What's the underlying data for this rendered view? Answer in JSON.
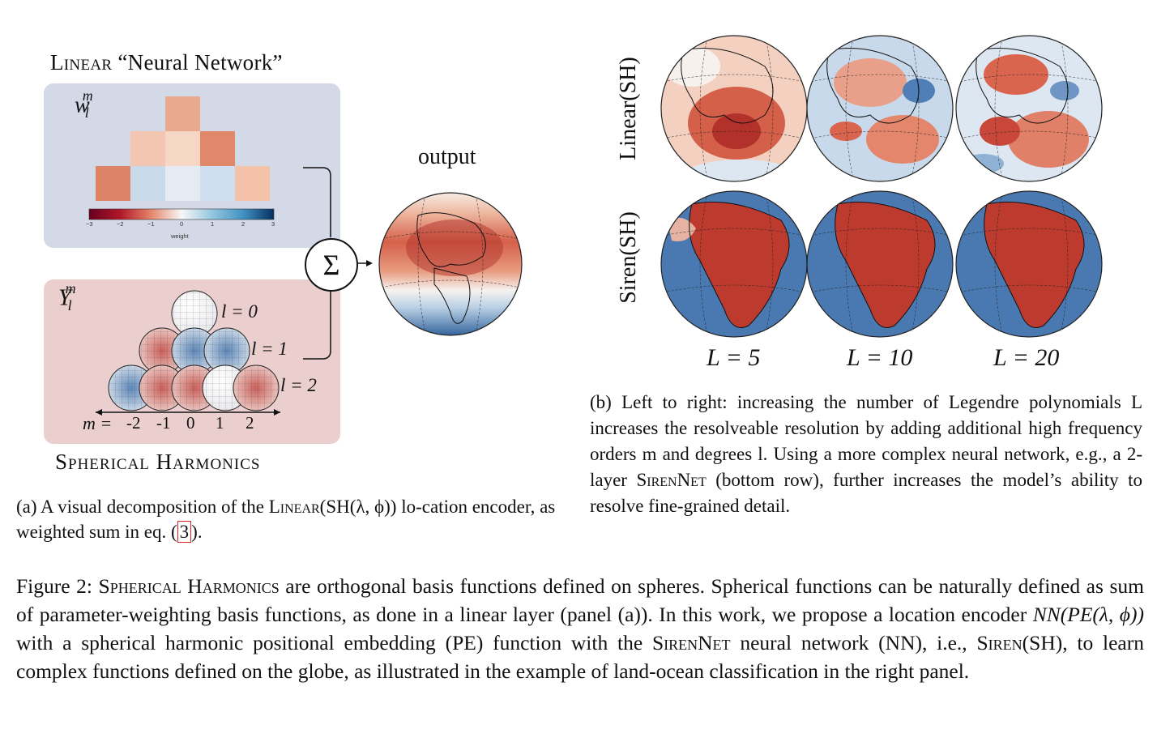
{
  "panel_a": {
    "title_prefix": "Linear",
    "title_suffix": " “Neural Network”",
    "weights_label_base": "w",
    "weights_label_sub": "l",
    "weights_label_sup": "m",
    "sh_label_base": "Y",
    "sh_label_sub": "l",
    "sh_label_sup": "m",
    "colorbar_ticks": [
      "−3",
      "−2",
      "−1",
      "0",
      "1",
      "2",
      "3"
    ],
    "colorbar_title": "weight",
    "degree_labels": [
      "l = 0",
      "l = 1",
      "l = 2"
    ],
    "m_axis_label": "m =",
    "m_ticks": [
      "-2",
      "-1",
      "0",
      "1",
      "2"
    ],
    "sum_symbol": "Σ",
    "output_label": "output",
    "sh_title": "Spherical Harmonics",
    "caption": {
      "part1": "(a) A visual decomposition of the ",
      "linear": "Linear",
      "part2": "(SH(λ, ϕ)) lo-cation encoder, as weighted sum in eq. (",
      "ref": "3",
      "part3": ")."
    }
  },
  "panel_b": {
    "row_labels": [
      "Linear(SH)",
      "Siren(SH)"
    ],
    "column_labels": [
      "L = 5",
      "L = 10",
      "L = 20"
    ],
    "caption": {
      "part1": "(b) Left to right: increasing the number of Legendre polynomials L increases the resolveable resolution by adding additional high frequency orders m and degrees l. Using a more complex neural network, e.g., a 2-layer ",
      "sirennet": "SirenNet",
      "part2": " (bottom row), further increases the model’s ability to resolve fine-grained detail."
    }
  },
  "figure_caption": {
    "label": "Figure 2: ",
    "sh": "Spherical Harmonics",
    "part1": " are orthogonal basis functions defined on spheres. Spherical functions can be naturally defined as sum of parameter-weighting basis functions, as done in a linear layer (panel (a)). In this work, we propose a location encoder ",
    "math": "NN(PE(λ, ϕ))",
    "part2": " with a spherical harmonic positional embedding (PE) function with the ",
    "sirennet": "SirenNet",
    "part3": " neural network (NN), i.e., ",
    "siren": "Siren",
    "part4": "(SH), to learn complex functions defined on the globe, as illustrated in the example of land-ocean classification in the right panel."
  },
  "colors": {
    "weights_box": "#d3d9e6",
    "harmonics_box": "#ebcfcf",
    "red": "#c0392b",
    "blue": "#4a78b0",
    "ref_box": "#dd2222"
  }
}
